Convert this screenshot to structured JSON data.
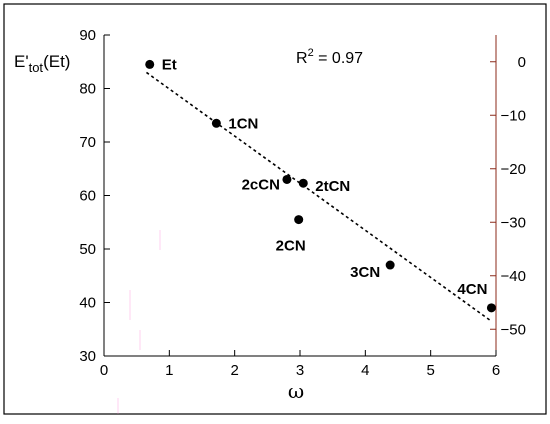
{
  "chart_data": {
    "type": "scatter",
    "xlabel": "ω",
    "ylabel": {
      "main": "E'",
      "sub": "tot",
      "tail": "(Et)"
    },
    "annotation": {
      "main": "R",
      "sup": "2",
      "tail": " = 0.97"
    },
    "xlim": [
      0,
      6
    ],
    "ylim": [
      30,
      90
    ],
    "y2lim": [
      -55,
      5
    ],
    "x_ticks": [
      0,
      1,
      2,
      3,
      4,
      5,
      6
    ],
    "y_ticks": [
      30,
      40,
      50,
      60,
      70,
      80,
      90
    ],
    "y2_ticks": [
      0,
      -10,
      -20,
      -30,
      -40,
      -50
    ],
    "points": [
      {
        "label": "Et",
        "x": 0.7,
        "y": 84.5
      },
      {
        "label": "1CN",
        "x": 1.72,
        "y": 73.5
      },
      {
        "label": "2cCN",
        "x": 2.8,
        "y": 63.0
      },
      {
        "label": "2tCN",
        "x": 3.05,
        "y": 62.3
      },
      {
        "label": "2CN",
        "x": 2.98,
        "y": 55.5
      },
      {
        "label": "3CN",
        "x": 4.38,
        "y": 47.0
      },
      {
        "label": "4CN",
        "x": 5.93,
        "y": 39.0
      }
    ],
    "fit_line": {
      "x": [
        0.65,
        5.93
      ],
      "y": [
        83.0,
        36.5
      ]
    },
    "colors": {
      "right_axis": "#8b2a1a",
      "points": "#000000"
    }
  }
}
